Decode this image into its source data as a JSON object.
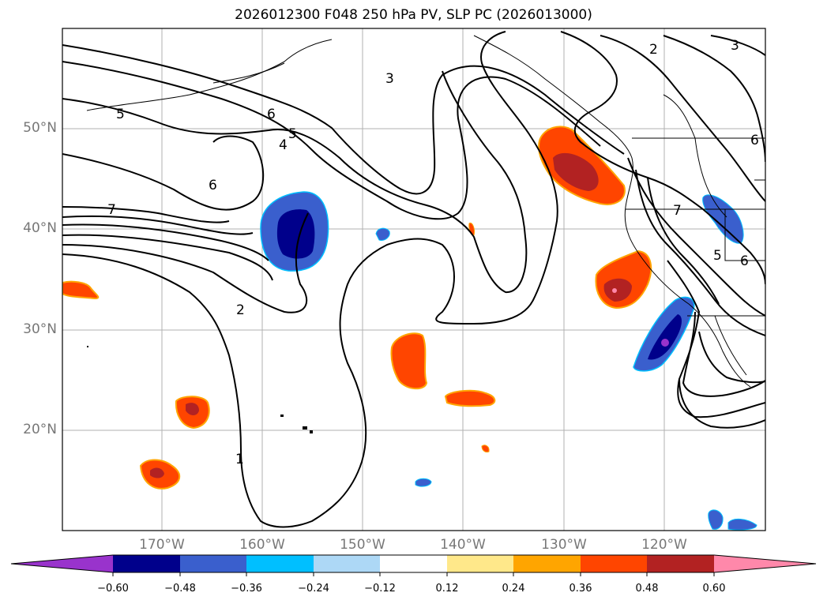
{
  "title": "2026012300 F048 250 hPa PV, SLP PC (2026013000)",
  "lat_labels": [
    "50°N",
    "40°N",
    "30°N",
    "20°N"
  ],
  "lon_labels": [
    "170°W",
    "160°W",
    "150°W",
    "140°W",
    "130°W",
    "120°W"
  ],
  "contour_labels": [
    "5",
    "6",
    "5",
    "4",
    "6",
    "7",
    "3",
    "2",
    "1",
    "2",
    "3",
    "6",
    "7",
    "5",
    "6"
  ],
  "colorbar": {
    "ticks": [
      "−0.60",
      "−0.48",
      "−0.36",
      "−0.24",
      "−0.12",
      "0.12",
      "0.24",
      "0.36",
      "0.48",
      "0.60"
    ],
    "colors": [
      "#9933cc",
      "#00008b",
      "#3a5fcd",
      "#00bfff",
      "#add8f6",
      "#ffffff",
      "#ffe88a",
      "#ffa500",
      "#ff4500",
      "#b22222",
      "#ff88aa"
    ]
  }
}
